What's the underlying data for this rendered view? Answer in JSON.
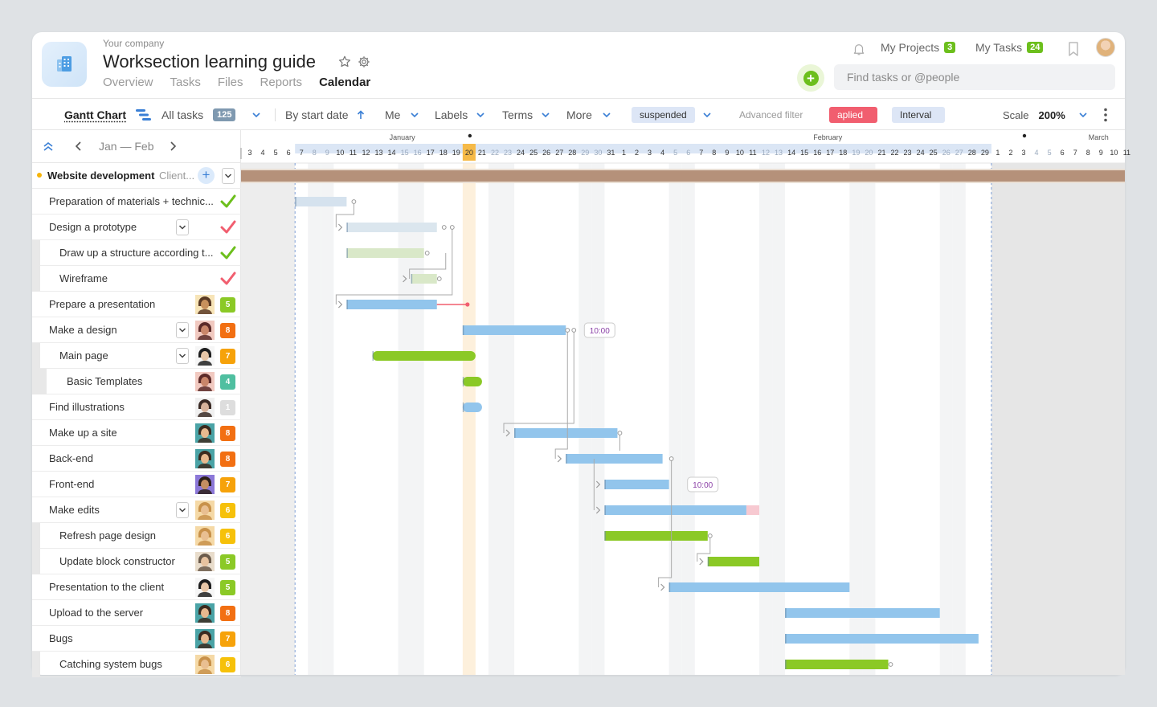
{
  "header": {
    "company": "Your company",
    "title": "Worksection learning guide",
    "nav": [
      "Overview",
      "Tasks",
      "Files",
      "Reports",
      "Calendar"
    ],
    "active_nav": "Calendar",
    "my_projects_label": "My Projects",
    "my_projects_count": "3",
    "my_tasks_label": "My Tasks",
    "my_tasks_count": "24",
    "search_placeholder": "Find tasks or @people"
  },
  "toolbar": {
    "view": "Gantt Chart",
    "all_tasks_label": "All tasks",
    "all_tasks_count": "125",
    "sort": "By start date",
    "assignee": "Me",
    "labels": "Labels",
    "terms": "Terms",
    "more": "More",
    "chip_suspended": "suspended",
    "advanced_filter": "Advanced filter",
    "chip_applied": "aplied",
    "chip_interval": "Interval",
    "scale_label": "Scale",
    "scale_value": "200%"
  },
  "tasklist": {
    "range": "Jan — Feb",
    "project": {
      "name": "Website development",
      "client": "Client..."
    },
    "tasks": [
      {
        "name": "Preparation of materials + technic...",
        "status": "done-green"
      },
      {
        "name": "Design a prototype",
        "status": "done-red",
        "expand": true
      },
      {
        "name": "Draw up a structure according t...",
        "status": "done-green",
        "level": 1
      },
      {
        "name": "Wireframe",
        "status": "done-red",
        "level": 1
      },
      {
        "name": "Prepare a presentation",
        "priority": "5",
        "avatar": "male-beard"
      },
      {
        "name": "Make a design",
        "priority": "8",
        "avatar": "female-dark",
        "expand": true
      },
      {
        "name": "Main page",
        "priority": "7",
        "avatar": "female-black",
        "expand": true,
        "level": 1
      },
      {
        "name": "Basic Templates",
        "priority": "4",
        "avatar": "female-dark",
        "level": 2
      },
      {
        "name": "Find illustrations",
        "priority": "1",
        "avatar": "female-hat"
      },
      {
        "name": "Make up a site",
        "priority": "8",
        "avatar": "male-teal"
      },
      {
        "name": "Back-end",
        "priority": "8",
        "avatar": "male-teal"
      },
      {
        "name": "Front-end",
        "priority": "7",
        "avatar": "male-purple"
      },
      {
        "name": "Make edits",
        "priority": "6",
        "avatar": "female-blonde",
        "expand": true
      },
      {
        "name": "Refresh page design",
        "priority": "6",
        "avatar": "female-blonde",
        "level": 1
      },
      {
        "name": "Update block constructor",
        "priority": "5",
        "avatar": "female-glasses",
        "level": 1
      },
      {
        "name": "Presentation to the client",
        "priority": "5",
        "avatar": "female-black"
      },
      {
        "name": "Upload to the server",
        "priority": "8",
        "avatar": "male-teal"
      },
      {
        "name": "Bugs",
        "priority": "7",
        "avatar": "male-teal"
      },
      {
        "name": "Catching system bugs",
        "priority": "6",
        "avatar": "female-blonde",
        "level": 1
      }
    ]
  },
  "gantt": {
    "months": [
      "January",
      "February",
      "March"
    ],
    "days": [
      "3",
      "4",
      "5",
      "6",
      "7",
      "8",
      "9",
      "10",
      "11",
      "12",
      "13",
      "14",
      "15",
      "16",
      "17",
      "18",
      "19",
      "20",
      "21",
      "22",
      "23",
      "24",
      "25",
      "26",
      "27",
      "28",
      "29",
      "30",
      "31",
      "1",
      "2",
      "3",
      "4",
      "5",
      "6",
      "7",
      "8",
      "9",
      "10",
      "11",
      "12",
      "13",
      "14",
      "15",
      "16",
      "17",
      "18",
      "19",
      "20",
      "21",
      "22",
      "23",
      "24",
      "25",
      "26",
      "27",
      "28",
      "29",
      "1",
      "2",
      "3",
      "4",
      "5",
      "6",
      "7",
      "8",
      "9",
      "10",
      "11"
    ],
    "today": "20",
    "time_labels": [
      "10:00",
      "10:00"
    ]
  },
  "colors": {
    "accent_green": "#6cbf1c",
    "bar_blue": "#92c5ec",
    "bar_green": "#8bc926",
    "project_bar": "#b5917a",
    "today": "#f6ba48"
  }
}
